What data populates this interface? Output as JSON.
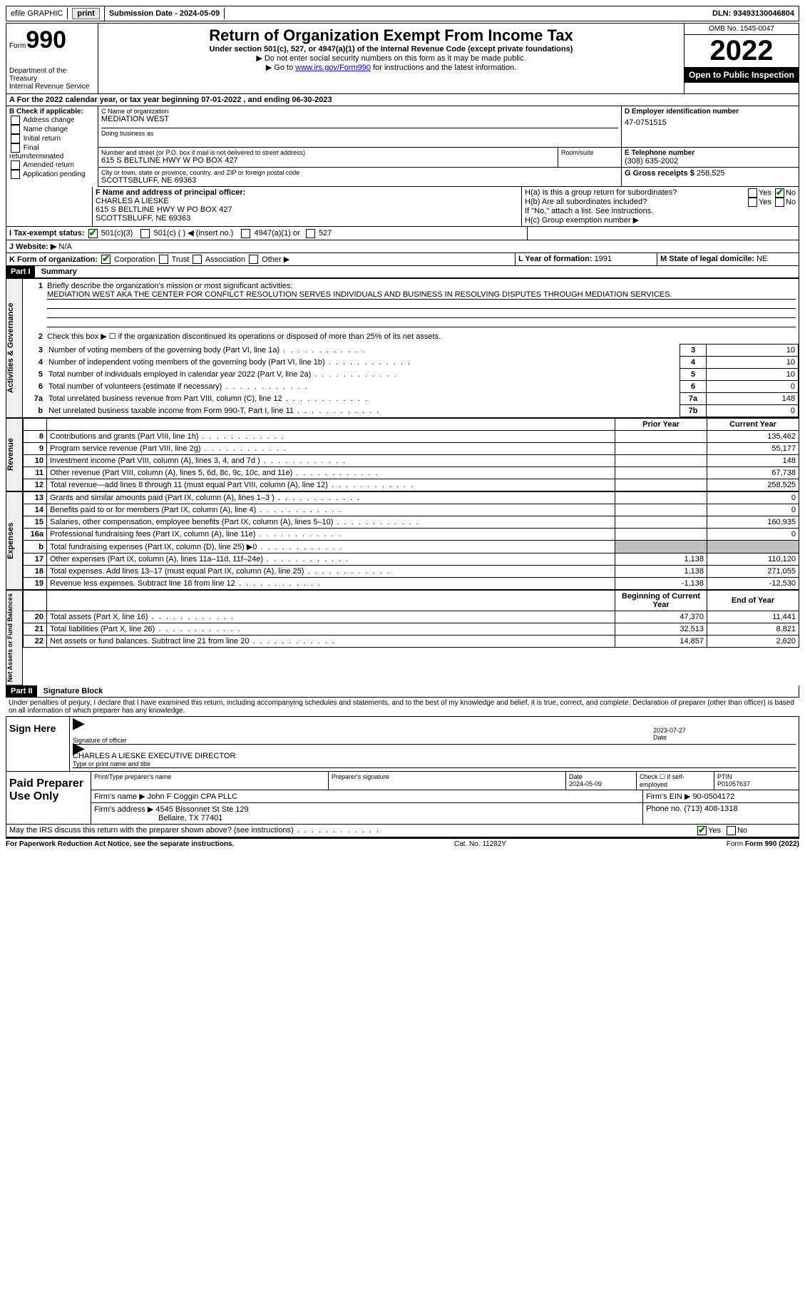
{
  "topbar": {
    "efile_label": "efile GRAPHIC",
    "print_btn": "print",
    "submission_label": "Submission Date - 2024-05-09",
    "dln_label": "DLN: 93493130046804"
  },
  "header": {
    "form_word": "Form",
    "form_number": "990",
    "dept1": "Department of the Treasury",
    "dept2": "Internal Revenue Service",
    "title": "Return of Organization Exempt From Income Tax",
    "subtitle": "Under section 501(c), 527, or 4947(a)(1) of the Internal Revenue Code (except private foundations)",
    "note1": "▶ Do not enter social security numbers on this form as it may be made public.",
    "note2_pre": "▶ Go to ",
    "note2_link": "www.irs.gov/Form990",
    "note2_post": " for instructions and the latest information.",
    "omb": "OMB No. 1545-0047",
    "year": "2022",
    "open_public": "Open to Public Inspection"
  },
  "sectionA": {
    "cal_year": "A For the 2022 calendar year, or tax year beginning 07-01-2022   , and ending 06-30-2023",
    "b_label": "B Check if applicable:",
    "b1": "Address change",
    "b2": "Name change",
    "b3": "Initial return",
    "b4": "Final return/terminated",
    "b5": "Amended return",
    "b6": "Application pending",
    "c_label": "C Name of organization",
    "c_name": "MEDIATION WEST",
    "dba_label": "Doing business as",
    "addr_label": "Number and street (or P.O. box if mail is not delivered to street address)",
    "addr": "615 S BELTLINE HWY W PO BOX 427",
    "room_label": "Room/suite",
    "city_label": "City or town, state or province, country, and ZIP or foreign postal code",
    "city": "SCOTTSBLUFF, NE  69363",
    "d_label": "D Employer identification number",
    "d_val": "47-0751515",
    "e_label": "E Telephone number",
    "e_val": "(308) 635-2002",
    "g_label": "G Gross receipts $ ",
    "g_val": "258,525",
    "f_label": "F  Name and address of principal officer:",
    "f_name": "CHARLES A LIESKE",
    "f_addr1": "615 S BELTLINE HWY W PO BOX 427",
    "f_addr2": "SCOTTSBLUFF, NE  69363",
    "ha_label": "H(a)  Is this a group return for subordinates?",
    "hb_label": "H(b)  Are all subordinates included?",
    "hb_note": "If \"No,\" attach a list. See instructions.",
    "hc_label": "H(c)  Group exemption number ▶",
    "yes": "Yes",
    "no": "No",
    "i_label": "I  Tax-exempt status:",
    "i_501c3": "501(c)(3)",
    "i_501c": "501(c) (  ) ◀ (insert no.)",
    "i_4947": "4947(a)(1) or",
    "i_527": "527",
    "j_label": "J  Website: ▶",
    "j_val": "N/A",
    "k_label": "K Form of organization:",
    "k_corp": "Corporation",
    "k_trust": "Trust",
    "k_assoc": "Association",
    "k_other": "Other ▶",
    "l_label": "L Year of formation: ",
    "l_val": "1991",
    "m_label": "M State of legal domicile: ",
    "m_val": "NE"
  },
  "part1": {
    "part_label": "Part I",
    "part_title": "Summary",
    "q1_label": "1",
    "q1_text": "Briefly describe the organization's mission or most significant activities:",
    "q1_answer": "MEDIATION WEST AKA THE CENTER FOR CONFILCT RESOLUTION SERVES INDIVIDUALS AND BUSINESS IN RESOLVING DISPUTES THROUGH MEDIATION SERVICES.",
    "q2_text": "Check this box ▶ ☐ if the organization discontinued its operations or disposed of more than 25% of its net assets.",
    "vert_ag": "Activities & Governance",
    "vert_rev": "Revenue",
    "vert_exp": "Expenses",
    "vert_net": "Net Assets or Fund Balances",
    "rows_ag": [
      {
        "n": "3",
        "d": "Number of voting members of the governing body (Part VI, line 1a)",
        "box": "3",
        "v": "10"
      },
      {
        "n": "4",
        "d": "Number of independent voting members of the governing body (Part VI, line 1b)",
        "box": "4",
        "v": "10"
      },
      {
        "n": "5",
        "d": "Total number of individuals employed in calendar year 2022 (Part V, line 2a)",
        "box": "5",
        "v": "10"
      },
      {
        "n": "6",
        "d": "Total number of volunteers (estimate if necessary)",
        "box": "6",
        "v": "0"
      },
      {
        "n": "7a",
        "d": "Total unrelated business revenue from Part VIII, column (C), line 12",
        "box": "7a",
        "v": "148"
      },
      {
        "n": "b",
        "d": "Net unrelated business taxable income from Form 990-T, Part I, line 11",
        "box": "7b",
        "v": "0"
      }
    ],
    "prior_year": "Prior Year",
    "current_year": "Current Year",
    "rows_rev": [
      {
        "n": "8",
        "d": "Contributions and grants (Part VIII, line 1h)",
        "py": "",
        "cy": "135,462"
      },
      {
        "n": "9",
        "d": "Program service revenue (Part VIII, line 2g)",
        "py": "",
        "cy": "55,177"
      },
      {
        "n": "10",
        "d": "Investment income (Part VIII, column (A), lines 3, 4, and 7d )",
        "py": "",
        "cy": "148"
      },
      {
        "n": "11",
        "d": "Other revenue (Part VIII, column (A), lines 5, 6d, 8c, 9c, 10c, and 11e)",
        "py": "",
        "cy": "67,738"
      },
      {
        "n": "12",
        "d": "Total revenue—add lines 8 through 11 (must equal Part VIII, column (A), line 12)",
        "py": "",
        "cy": "258,525"
      }
    ],
    "rows_exp": [
      {
        "n": "13",
        "d": "Grants and similar amounts paid (Part IX, column (A), lines 1–3 )",
        "py": "",
        "cy": "0"
      },
      {
        "n": "14",
        "d": "Benefits paid to or for members (Part IX, column (A), line 4)",
        "py": "",
        "cy": "0"
      },
      {
        "n": "15",
        "d": "Salaries, other compensation, employee benefits (Part IX, column (A), lines 5–10)",
        "py": "",
        "cy": "160,935"
      },
      {
        "n": "16a",
        "d": "Professional fundraising fees (Part IX, column (A), line 11e)",
        "py": "",
        "cy": "0"
      },
      {
        "n": "b",
        "d": "Total fundraising expenses (Part IX, column (D), line 25) ▶0",
        "py": "SHADE",
        "cy": "SHADE"
      },
      {
        "n": "17",
        "d": "Other expenses (Part IX, column (A), lines 11a–11d, 11f–24e)",
        "py": "1,138",
        "cy": "110,120"
      },
      {
        "n": "18",
        "d": "Total expenses. Add lines 13–17 (must equal Part IX, column (A), line 25)",
        "py": "1,138",
        "cy": "271,055"
      },
      {
        "n": "19",
        "d": "Revenue less expenses. Subtract line 18 from line 12",
        "py": "-1,138",
        "cy": "-12,530"
      }
    ],
    "begin_year": "Beginning of Current Year",
    "end_year": "End of Year",
    "rows_net": [
      {
        "n": "20",
        "d": "Total assets (Part X, line 16)",
        "py": "47,370",
        "cy": "11,441"
      },
      {
        "n": "21",
        "d": "Total liabilities (Part X, line 26)",
        "py": "32,513",
        "cy": "8,821"
      },
      {
        "n": "22",
        "d": "Net assets or fund balances. Subtract line 21 from line 20",
        "py": "14,857",
        "cy": "2,620"
      }
    ]
  },
  "part2": {
    "part_label": "Part II",
    "part_title": "Signature Block",
    "declaration": "Under penalties of perjury, I declare that I have examined this return, including accompanying schedules and statements, and to the best of my knowledge and belief, it is true, correct, and complete. Declaration of preparer (other than officer) is based on all information of which preparer has any knowledge.",
    "sign_here": "Sign Here",
    "sig_officer": "Signature of officer",
    "sig_date": "2023-07-27",
    "date_label": "Date",
    "officer_name": "CHARLES A LIESKE  EXECUTIVE DIRECTOR",
    "type_name": "Type or print name and title",
    "paid_prep": "Paid Preparer Use Only",
    "prep_name_label": "Print/Type preparer's name",
    "prep_sig_label": "Preparer's signature",
    "prep_date_label": "Date",
    "prep_date": "2024-05-09",
    "check_self": "Check ☐ if self-employed",
    "ptin_label": "PTIN",
    "ptin": "P01057637",
    "firm_name_label": "Firm's name    ▶",
    "firm_name": "John F Coggin CPA PLLC",
    "firm_ein_label": "Firm's EIN ▶",
    "firm_ein": "90-0504172",
    "firm_addr_label": "Firm's address ▶",
    "firm_addr1": "4545 Bissonnet St Ste 129",
    "firm_addr2": "Bellaire, TX  77401",
    "phone_label": "Phone no. ",
    "phone": "(713) 408-1318",
    "discuss": "May the IRS discuss this return with the preparer shown above? (see instructions)"
  },
  "footer": {
    "paperwork": "For Paperwork Reduction Act Notice, see the separate instructions.",
    "cat": "Cat. No. 11282Y",
    "form": "Form 990 (2022)"
  }
}
